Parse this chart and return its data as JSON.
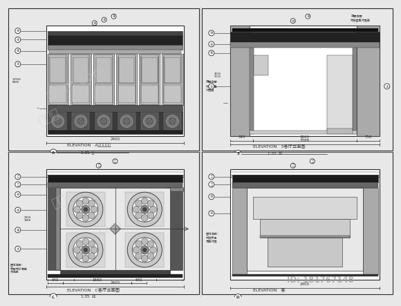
{
  "bg_color": "#e8e8e8",
  "line_color": "#2a2a2a",
  "panel_bg": "#f5f5f5",
  "dark_fill": "#1a1a1a",
  "med_fill": "#555555",
  "light_fill": "#cccccc",
  "wm_color": "#bbbbbb",
  "id_color": "#888888",
  "panels": [
    {
      "label": "ELEVATION   A客厅立面图",
      "scale": "1:35  比",
      "marker": "A"
    },
    {
      "label": "ELEVATION   3客厅立面图",
      "scale": "1:35  比",
      "marker": "3"
    },
    {
      "label": "ELEVATION   C客厅立面图",
      "scale": "1:35  比",
      "marker": "C"
    },
    {
      "label": "ELEVATION   客",
      "scale": "",
      "marker": "D"
    }
  ]
}
